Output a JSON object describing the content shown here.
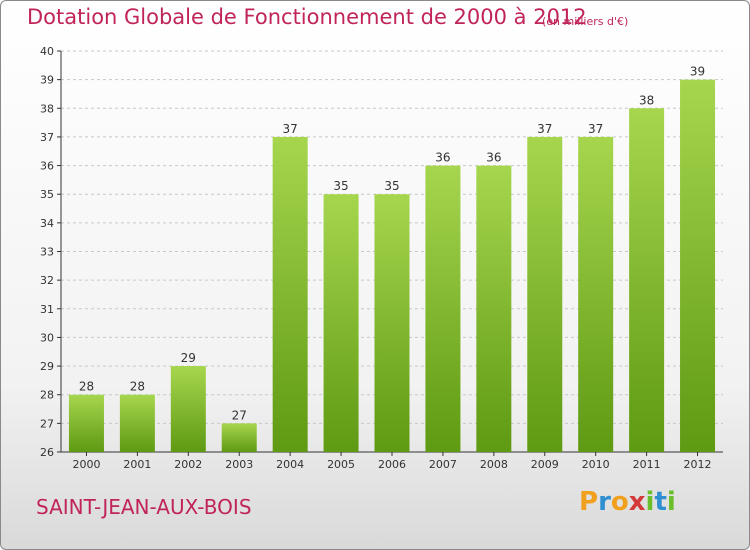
{
  "title": "Dotation Globale de Fonctionnement de 2000 à 2012",
  "subtitle": "(en milliers d'€)",
  "commune": "SAINT-JEAN-AUX-BOIS",
  "logo": {
    "letters": [
      "P",
      "r",
      "o",
      "x",
      "i",
      "t",
      "i"
    ],
    "colors": [
      "#f0a01c",
      "#2f8fd1",
      "#f0a01c",
      "#d43a3a",
      "#6abf2a",
      "#2f8fd1",
      "#6abf2a"
    ]
  },
  "colors": {
    "bar_top": "#a6d64e",
    "bar_bottom": "#5e9a12",
    "text": "#c0245a",
    "axis": "#333333"
  },
  "chart_data": {
    "type": "bar",
    "categories": [
      "2000",
      "2001",
      "2002",
      "2003",
      "2004",
      "2005",
      "2006",
      "2007",
      "2008",
      "2009",
      "2010",
      "2011",
      "2012"
    ],
    "values": [
      28,
      28,
      29,
      27,
      37,
      35,
      35,
      36,
      36,
      37,
      37,
      38,
      39
    ],
    "title": "Dotation Globale de Fonctionnement de 2000 à 2012",
    "xlabel": "",
    "ylabel": "",
    "ylim": [
      26,
      40
    ],
    "yticks": [
      26,
      27,
      28,
      29,
      30,
      31,
      32,
      33,
      34,
      35,
      36,
      37,
      38,
      39,
      40
    ],
    "grid": true,
    "data_labels": true
  }
}
